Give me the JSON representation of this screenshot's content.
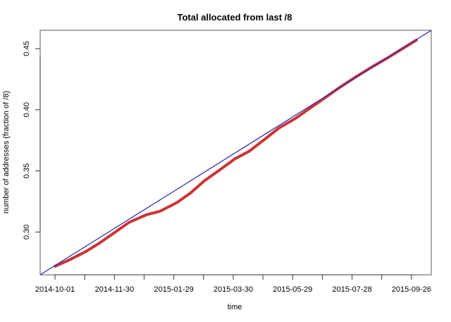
{
  "chart_data": {
    "type": "line",
    "title": "Total allocated from last /8",
    "xlabel": "time",
    "ylabel": "number of addresses (fraction of /8)",
    "x_axis_kind": "date",
    "x_ticks": [
      "2014-10-01",
      "2014-10-31",
      "2014-11-30",
      "2014-12-30",
      "2015-01-29",
      "2015-02-28",
      "2015-03-30",
      "2015-04-29",
      "2015-05-29",
      "2015-06-28",
      "2015-07-28",
      "2015-08-27",
      "2015-09-26"
    ],
    "x_tick_labels": [
      "2014-10-01",
      "",
      "2014-11-30",
      "",
      "2015-01-29",
      "",
      "2015-03-30",
      "",
      "2015-05-29",
      "",
      "2015-07-28",
      "",
      "2015-09-26"
    ],
    "y_ticks": [
      0.3,
      0.35,
      0.4,
      0.45
    ],
    "y_tick_labels": [
      "0.30",
      "0.35",
      "0.40",
      "0.45"
    ],
    "xlim": [
      "2014-09-16",
      "2015-10-16"
    ],
    "ylim": [
      0.265,
      0.465
    ],
    "grid": false,
    "legend": "none",
    "series": [
      {
        "color": "#cc3333",
        "x": [
          "2014-10-01",
          "2014-10-15",
          "2014-11-01",
          "2014-11-15",
          "2014-12-01",
          "2014-12-15",
          "2015-01-01",
          "2015-01-15",
          "2015-02-01",
          "2015-02-15",
          "2015-03-01",
          "2015-03-15",
          "2015-04-01",
          "2015-04-15",
          "2015-05-01",
          "2015-05-15",
          "2015-06-01",
          "2015-06-15",
          "2015-07-01",
          "2015-07-15",
          "2015-08-01",
          "2015-08-15",
          "2015-09-01",
          "2015-09-15",
          "2015-10-01"
        ],
        "values": [
          0.272,
          0.277,
          0.284,
          0.291,
          0.3,
          0.308,
          0.314,
          0.317,
          0.324,
          0.332,
          0.342,
          0.35,
          0.36,
          0.366,
          0.376,
          0.385,
          0.393,
          0.401,
          0.41,
          0.418,
          0.427,
          0.434,
          0.442,
          0.449,
          0.457
        ]
      },
      {
        "color": "#3333bb",
        "x": [
          "2014-09-16",
          "2015-10-16"
        ],
        "values": [
          0.265,
          0.465
        ]
      }
    ]
  }
}
